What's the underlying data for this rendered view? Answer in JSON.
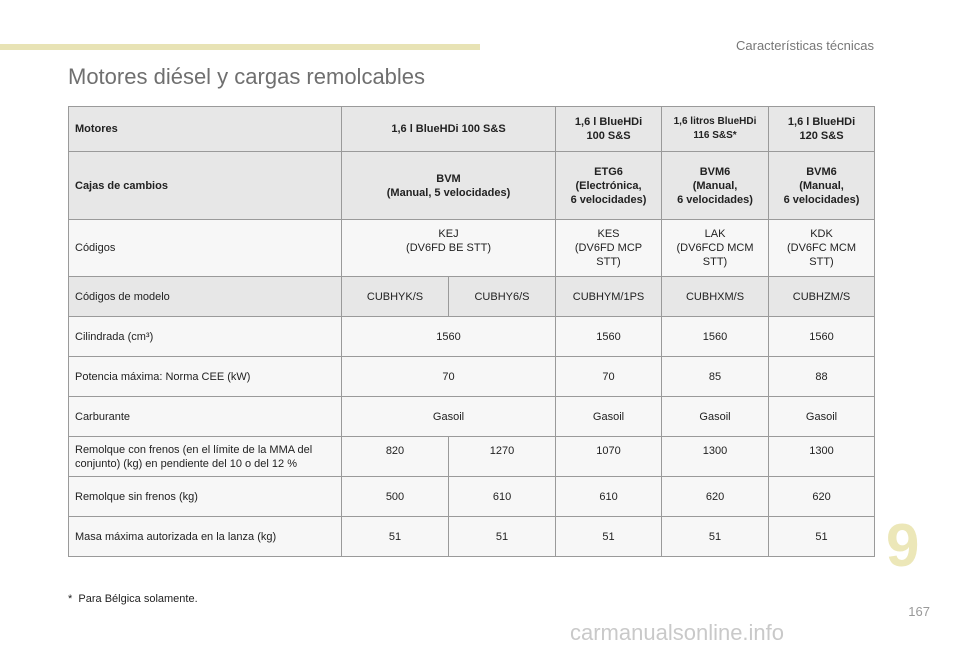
{
  "header": {
    "section_label": "Características técnicas",
    "page_title": "Motores diésel y cargas remolcables"
  },
  "table": {
    "motores": {
      "label": "Motores",
      "c1": "1,6 l BlueHDi 100 S&S",
      "c2": "1,6 l BlueHDi\n100 S&S",
      "c3": "1,6 litros BlueHDi\n116 S&S*",
      "c4": "1,6 l BlueHDi\n120 S&S"
    },
    "cajas": {
      "label": "Cajas de cambios",
      "c1": "BVM\n(Manual, 5 velocidades)",
      "c2": "ETG6\n(Electrónica,\n6 velocidades)",
      "c3": "BVM6\n(Manual,\n6 velocidades)",
      "c4": "BVM6\n(Manual,\n6 velocidades)"
    },
    "codigos": {
      "label": "Códigos",
      "c1": "KEJ\n(DV6FD BE STT)",
      "c2": "KES\n(DV6FD MCP\nSTT)",
      "c3": "LAK\n(DV6FCD MCM\nSTT)",
      "c4": "KDK\n(DV6FC MCM\nSTT)"
    },
    "modelo": {
      "label": "Códigos de modelo",
      "v": [
        "CUBHYK/S",
        "CUBHY6/S",
        "CUBHYM/1PS",
        "CUBHXM/S",
        "CUBHZM/S"
      ]
    },
    "cilindrada": {
      "label": "Cilindrada (cm³)",
      "c1": "1560",
      "c2": "1560",
      "c3": "1560",
      "c4": "1560"
    },
    "potencia": {
      "label": "Potencia máxima: Norma CEE (kW)",
      "c1": "70",
      "c2": "70",
      "c3": "85",
      "c4": "88"
    },
    "carburante": {
      "label": "Carburante",
      "c1": "Gasoil",
      "c2": "Gasoil",
      "c3": "Gasoil",
      "c4": "Gasoil"
    },
    "remolque_con": {
      "label": "Remolque con frenos (en el límite de la MMA del conjunto) (kg) en pendiente del 10 o del 12 %",
      "v": [
        "820",
        "1270",
        "1070",
        "1300",
        "1300"
      ]
    },
    "remolque_sin": {
      "label": "Remolque sin frenos (kg)",
      "v": [
        "500",
        "610",
        "610",
        "620",
        "620"
      ]
    },
    "masa": {
      "label": "Masa máxima autorizada en la lanza (kg)",
      "v": [
        "51",
        "51",
        "51",
        "51",
        "51"
      ]
    }
  },
  "footnote": {
    "marker": "*",
    "text": "Para Bélgica solamente."
  },
  "chapter_number": "9",
  "page_number": "167",
  "watermark": "carmanualsonline.info"
}
